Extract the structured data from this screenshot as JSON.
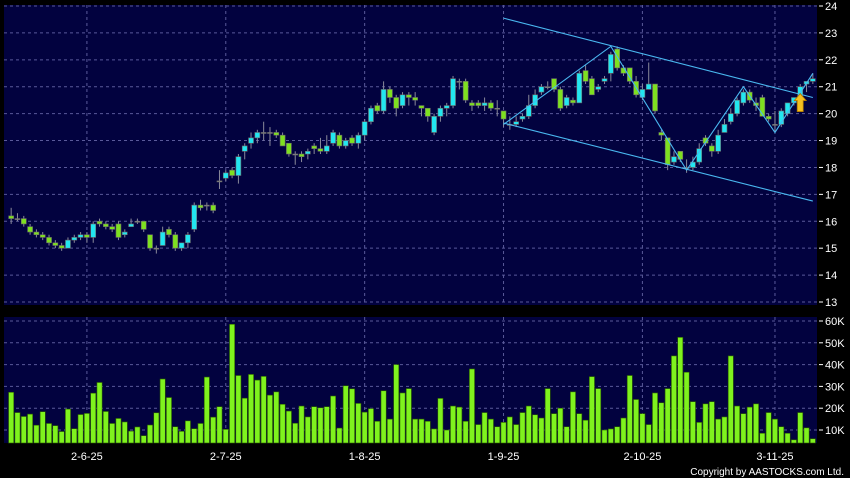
{
  "chart_data": {
    "type": "candlestick",
    "colors": {
      "background": "#02023f",
      "grid": "#5a5a9a",
      "up": "#22e6f0",
      "down": "#7ee020",
      "volume": "#7ff21e",
      "trendline": "#4ab8f0",
      "arrow": "#f4c020",
      "text": "#ffffff"
    },
    "price_axis": {
      "ylim": [
        13,
        24
      ],
      "ticks": [
        13,
        14,
        15,
        16,
        17,
        18,
        19,
        20,
        21,
        22,
        23,
        24
      ],
      "grid": true,
      "position": "right"
    },
    "volume_axis": {
      "ylim": [
        0,
        60000
      ],
      "ticks": [
        {
          "v": 10000,
          "label": "10K"
        },
        {
          "v": 20000,
          "label": "20K"
        },
        {
          "v": 30000,
          "label": "30K"
        },
        {
          "v": 40000,
          "label": "40K"
        },
        {
          "v": 50000,
          "label": "50K"
        },
        {
          "v": 60000,
          "label": "60K"
        }
      ],
      "position": "right"
    },
    "x_ticks": [
      {
        "index": 12,
        "label": "2-6-25"
      },
      {
        "index": 34,
        "label": "2-7-25"
      },
      {
        "index": 56,
        "label": "1-8-25"
      },
      {
        "index": 78,
        "label": "1-9-25"
      },
      {
        "index": 100,
        "label": "2-10-25"
      },
      {
        "index": 121,
        "label": "3-11-25"
      }
    ],
    "ohlc": [
      [
        16.2,
        16.5,
        15.9,
        16.1
      ],
      [
        16.1,
        16.3,
        16.0,
        16.1
      ],
      [
        16.1,
        16.2,
        15.8,
        15.9
      ],
      [
        15.8,
        15.9,
        15.5,
        15.6
      ],
      [
        15.6,
        15.7,
        15.4,
        15.5
      ],
      [
        15.5,
        15.6,
        15.3,
        15.4
      ],
      [
        15.4,
        15.5,
        15.1,
        15.2
      ],
      [
        15.2,
        15.3,
        15.0,
        15.1
      ],
      [
        15.1,
        15.2,
        14.9,
        15.0
      ],
      [
        15.0,
        15.4,
        15.0,
        15.3
      ],
      [
        15.3,
        15.5,
        15.2,
        15.4
      ],
      [
        15.4,
        15.6,
        15.3,
        15.5
      ],
      [
        15.5,
        15.6,
        15.2,
        15.4
      ],
      [
        15.4,
        16.0,
        15.2,
        15.9
      ],
      [
        16.0,
        16.1,
        15.8,
        15.9
      ],
      [
        15.9,
        16.0,
        15.7,
        15.8
      ],
      [
        15.8,
        15.9,
        15.6,
        15.7
      ],
      [
        15.9,
        16.0,
        15.3,
        15.4
      ],
      [
        15.5,
        15.7,
        15.4,
        15.6
      ],
      [
        15.8,
        16.1,
        15.8,
        15.9
      ],
      [
        16.0,
        16.1,
        15.9,
        16.0
      ],
      [
        16.0,
        16.0,
        15.6,
        15.7
      ],
      [
        15.5,
        15.5,
        14.9,
        15.0
      ],
      [
        15.0,
        15.1,
        14.8,
        15.0
      ],
      [
        15.1,
        15.8,
        15.1,
        15.6
      ],
      [
        15.7,
        15.8,
        15.4,
        15.5
      ],
      [
        15.5,
        15.6,
        14.9,
        15.0
      ],
      [
        15.0,
        15.2,
        14.9,
        15.2
      ],
      [
        15.2,
        15.6,
        15.0,
        15.5
      ],
      [
        15.7,
        16.7,
        15.6,
        16.6
      ],
      [
        16.6,
        16.8,
        16.4,
        16.5
      ],
      [
        16.6,
        16.7,
        16.4,
        16.6
      ],
      [
        16.6,
        16.7,
        16.3,
        16.4
      ],
      [
        17.5,
        17.9,
        17.2,
        17.5
      ],
      [
        17.6,
        17.9,
        17.5,
        17.8
      ],
      [
        17.9,
        18.0,
        17.6,
        17.7
      ],
      [
        17.7,
        18.5,
        17.4,
        18.4
      ],
      [
        18.6,
        18.9,
        18.3,
        18.8
      ],
      [
        18.9,
        19.3,
        18.7,
        19.1
      ],
      [
        19.1,
        19.4,
        18.9,
        19.3
      ],
      [
        19.3,
        19.7,
        19.0,
        19.3
      ],
      [
        19.3,
        19.5,
        18.8,
        19.3
      ],
      [
        19.3,
        19.4,
        19.1,
        19.2
      ],
      [
        19.2,
        19.3,
        18.8,
        18.8
      ],
      [
        18.9,
        18.9,
        18.4,
        18.5
      ],
      [
        18.5,
        18.6,
        18.1,
        18.5
      ],
      [
        18.5,
        18.6,
        18.2,
        18.4
      ],
      [
        18.5,
        18.7,
        18.3,
        18.6
      ],
      [
        18.8,
        18.9,
        18.5,
        18.7
      ],
      [
        18.7,
        19.1,
        18.5,
        18.6
      ],
      [
        18.6,
        19.2,
        18.5,
        18.8
      ],
      [
        18.9,
        19.4,
        18.8,
        19.3
      ],
      [
        19.2,
        19.3,
        18.7,
        18.8
      ],
      [
        18.8,
        19.1,
        18.7,
        19.0
      ],
      [
        19.1,
        19.2,
        18.8,
        18.9
      ],
      [
        18.9,
        19.3,
        18.7,
        19.2
      ],
      [
        19.2,
        19.8,
        19.0,
        19.7
      ],
      [
        19.7,
        20.3,
        19.6,
        20.2
      ],
      [
        20.3,
        20.4,
        20.0,
        20.1
      ],
      [
        20.1,
        21.2,
        20.0,
        20.9
      ],
      [
        20.9,
        21.0,
        20.4,
        20.6
      ],
      [
        20.6,
        20.7,
        19.9,
        20.2
      ],
      [
        20.3,
        20.8,
        20.2,
        20.7
      ],
      [
        20.7,
        20.8,
        20.3,
        20.6
      ],
      [
        20.6,
        20.8,
        20.3,
        20.5
      ],
      [
        20.3,
        20.3,
        19.9,
        20.2
      ],
      [
        20.2,
        20.2,
        19.7,
        19.9
      ],
      [
        19.3,
        20.0,
        19.2,
        19.9
      ],
      [
        19.9,
        20.3,
        19.7,
        20.2
      ],
      [
        20.2,
        20.4,
        19.9,
        20.3
      ],
      [
        20.3,
        21.4,
        20.2,
        21.3
      ],
      [
        21.2,
        21.3,
        20.9,
        21.2
      ],
      [
        21.2,
        21.3,
        20.4,
        20.5
      ],
      [
        20.4,
        20.5,
        20.1,
        20.3
      ],
      [
        20.4,
        20.5,
        20.2,
        20.3
      ],
      [
        20.3,
        20.6,
        20.1,
        20.4
      ],
      [
        20.4,
        20.5,
        20.1,
        20.2
      ],
      [
        20.2,
        20.5,
        19.9,
        20.2
      ],
      [
        20.1,
        20.1,
        19.5,
        19.8
      ],
      [
        19.6,
        19.9,
        19.4,
        19.6
      ],
      [
        19.6,
        19.9,
        19.5,
        19.7
      ],
      [
        19.8,
        20.0,
        19.7,
        19.9
      ],
      [
        19.9,
        20.7,
        19.8,
        20.3
      ],
      [
        20.3,
        20.9,
        20.2,
        20.7
      ],
      [
        20.8,
        21.1,
        20.7,
        21.0
      ],
      [
        21.0,
        21.2,
        20.9,
        21.0
      ],
      [
        21.3,
        21.3,
        20.8,
        20.9
      ],
      [
        20.9,
        21.0,
        20.1,
        20.2
      ],
      [
        20.3,
        20.7,
        20.2,
        20.6
      ],
      [
        20.5,
        20.6,
        20.3,
        20.4
      ],
      [
        20.4,
        21.6,
        20.4,
        21.5
      ],
      [
        21.6,
        21.8,
        21.1,
        21.2
      ],
      [
        21.3,
        21.4,
        20.7,
        20.7
      ],
      [
        20.9,
        21.1,
        20.8,
        21.0
      ],
      [
        21.2,
        21.4,
        21.1,
        21.3
      ],
      [
        21.5,
        22.3,
        21.2,
        22.2
      ],
      [
        22.4,
        22.5,
        21.6,
        21.7
      ],
      [
        21.7,
        21.8,
        21.4,
        21.5
      ],
      [
        21.7,
        21.7,
        21.1,
        21.2
      ],
      [
        21.2,
        21.4,
        20.6,
        20.7
      ],
      [
        20.6,
        21.1,
        20.5,
        20.9
      ],
      [
        20.9,
        21.9,
        20.9,
        21.1
      ],
      [
        21.1,
        21.1,
        20.0,
        20.1
      ],
      [
        19.3,
        19.4,
        19.0,
        19.2
      ],
      [
        19.1,
        19.1,
        17.9,
        18.1
      ],
      [
        18.2,
        18.6,
        18.1,
        18.4
      ],
      [
        18.6,
        18.6,
        18.2,
        18.3
      ],
      [
        18.0,
        18.3,
        17.8,
        18.0
      ],
      [
        18.0,
        18.4,
        17.9,
        18.2
      ],
      [
        18.2,
        18.9,
        18.1,
        18.7
      ],
      [
        19.1,
        19.2,
        18.8,
        18.9
      ],
      [
        18.8,
        18.9,
        18.4,
        18.6
      ],
      [
        18.6,
        19.4,
        18.5,
        19.2
      ],
      [
        19.3,
        19.8,
        19.3,
        19.6
      ],
      [
        19.7,
        20.2,
        19.6,
        20.0
      ],
      [
        20.0,
        20.6,
        19.9,
        20.5
      ],
      [
        20.4,
        20.9,
        20.3,
        20.8
      ],
      [
        20.8,
        20.9,
        20.4,
        20.5
      ],
      [
        20.4,
        20.6,
        20.1,
        20.3
      ],
      [
        20.6,
        20.7,
        19.9,
        19.9
      ],
      [
        19.9,
        20.0,
        19.7,
        19.8
      ],
      [
        19.6,
        20.1,
        19.3,
        19.6
      ],
      [
        19.6,
        20.2,
        19.5,
        20.1
      ],
      [
        20.0,
        20.4,
        19.9,
        20.4
      ],
      [
        20.4,
        20.6,
        20.3,
        20.6
      ],
      [
        20.5,
        21.1,
        20.4,
        21.0
      ],
      [
        21.1,
        21.2,
        20.8,
        21.2
      ],
      [
        21.2,
        21.5,
        21.1,
        21.3
      ]
    ],
    "volume": [
      27300,
      18000,
      16200,
      17300,
      12200,
      18400,
      13000,
      12000,
      9300,
      19600,
      10600,
      17100,
      17600,
      26900,
      31800,
      18500,
      13000,
      15300,
      13700,
      9500,
      11400,
      7400,
      12300,
      17900,
      33400,
      24900,
      11500,
      9400,
      14200,
      10600,
      13000,
      34300,
      15900,
      20700,
      10300,
      58500,
      35000,
      24600,
      35500,
      32900,
      34600,
      26000,
      27500,
      21800,
      18700,
      13100,
      21000,
      16000,
      20700,
      20200,
      20700,
      25600,
      10900,
      30300,
      28900,
      22200,
      18200,
      19800,
      14000,
      28000,
      15000,
      40000,
      27000,
      29000,
      15000,
      15000,
      14000,
      10500,
      24500,
      10000,
      21000,
      20500,
      14000,
      38000,
      12500,
      18000,
      15000,
      11500,
      13500,
      16000,
      12500,
      18000,
      21000,
      17000,
      15500,
      29000,
      17500,
      20000,
      11500,
      27500,
      17500,
      14500,
      34500,
      29000,
      10000,
      10500,
      11500,
      15500,
      35000,
      24000,
      17500,
      12500,
      27000,
      22500,
      29000,
      44000,
      52500,
      36500,
      23000,
      13500,
      22000,
      23000,
      15000,
      16000,
      44000,
      21000,
      17500,
      20500,
      22000,
      8500,
      18000,
      15000,
      11500,
      8500,
      5500,
      18000,
      11000,
      6000
    ],
    "trendlines": [
      {
        "kind": "channel-upper",
        "points": [
          [
            78,
            23.55
          ],
          [
            127,
            20.6
          ]
        ]
      },
      {
        "kind": "channel-lower",
        "points": [
          [
            78,
            19.65
          ],
          [
            127,
            16.75
          ]
        ]
      },
      {
        "kind": "zigzag",
        "points": [
          [
            78,
            19.6
          ],
          [
            95,
            22.5
          ],
          [
            107,
            17.9
          ],
          [
            116,
            21.0
          ],
          [
            121,
            19.3
          ],
          [
            127,
            21.5
          ]
        ]
      }
    ],
    "annotations": [
      {
        "type": "up-arrow",
        "index": 125,
        "price": 20.3
      }
    ]
  },
  "footer": {
    "copyright": "Copyright by AASTOCKS.com Ltd."
  }
}
